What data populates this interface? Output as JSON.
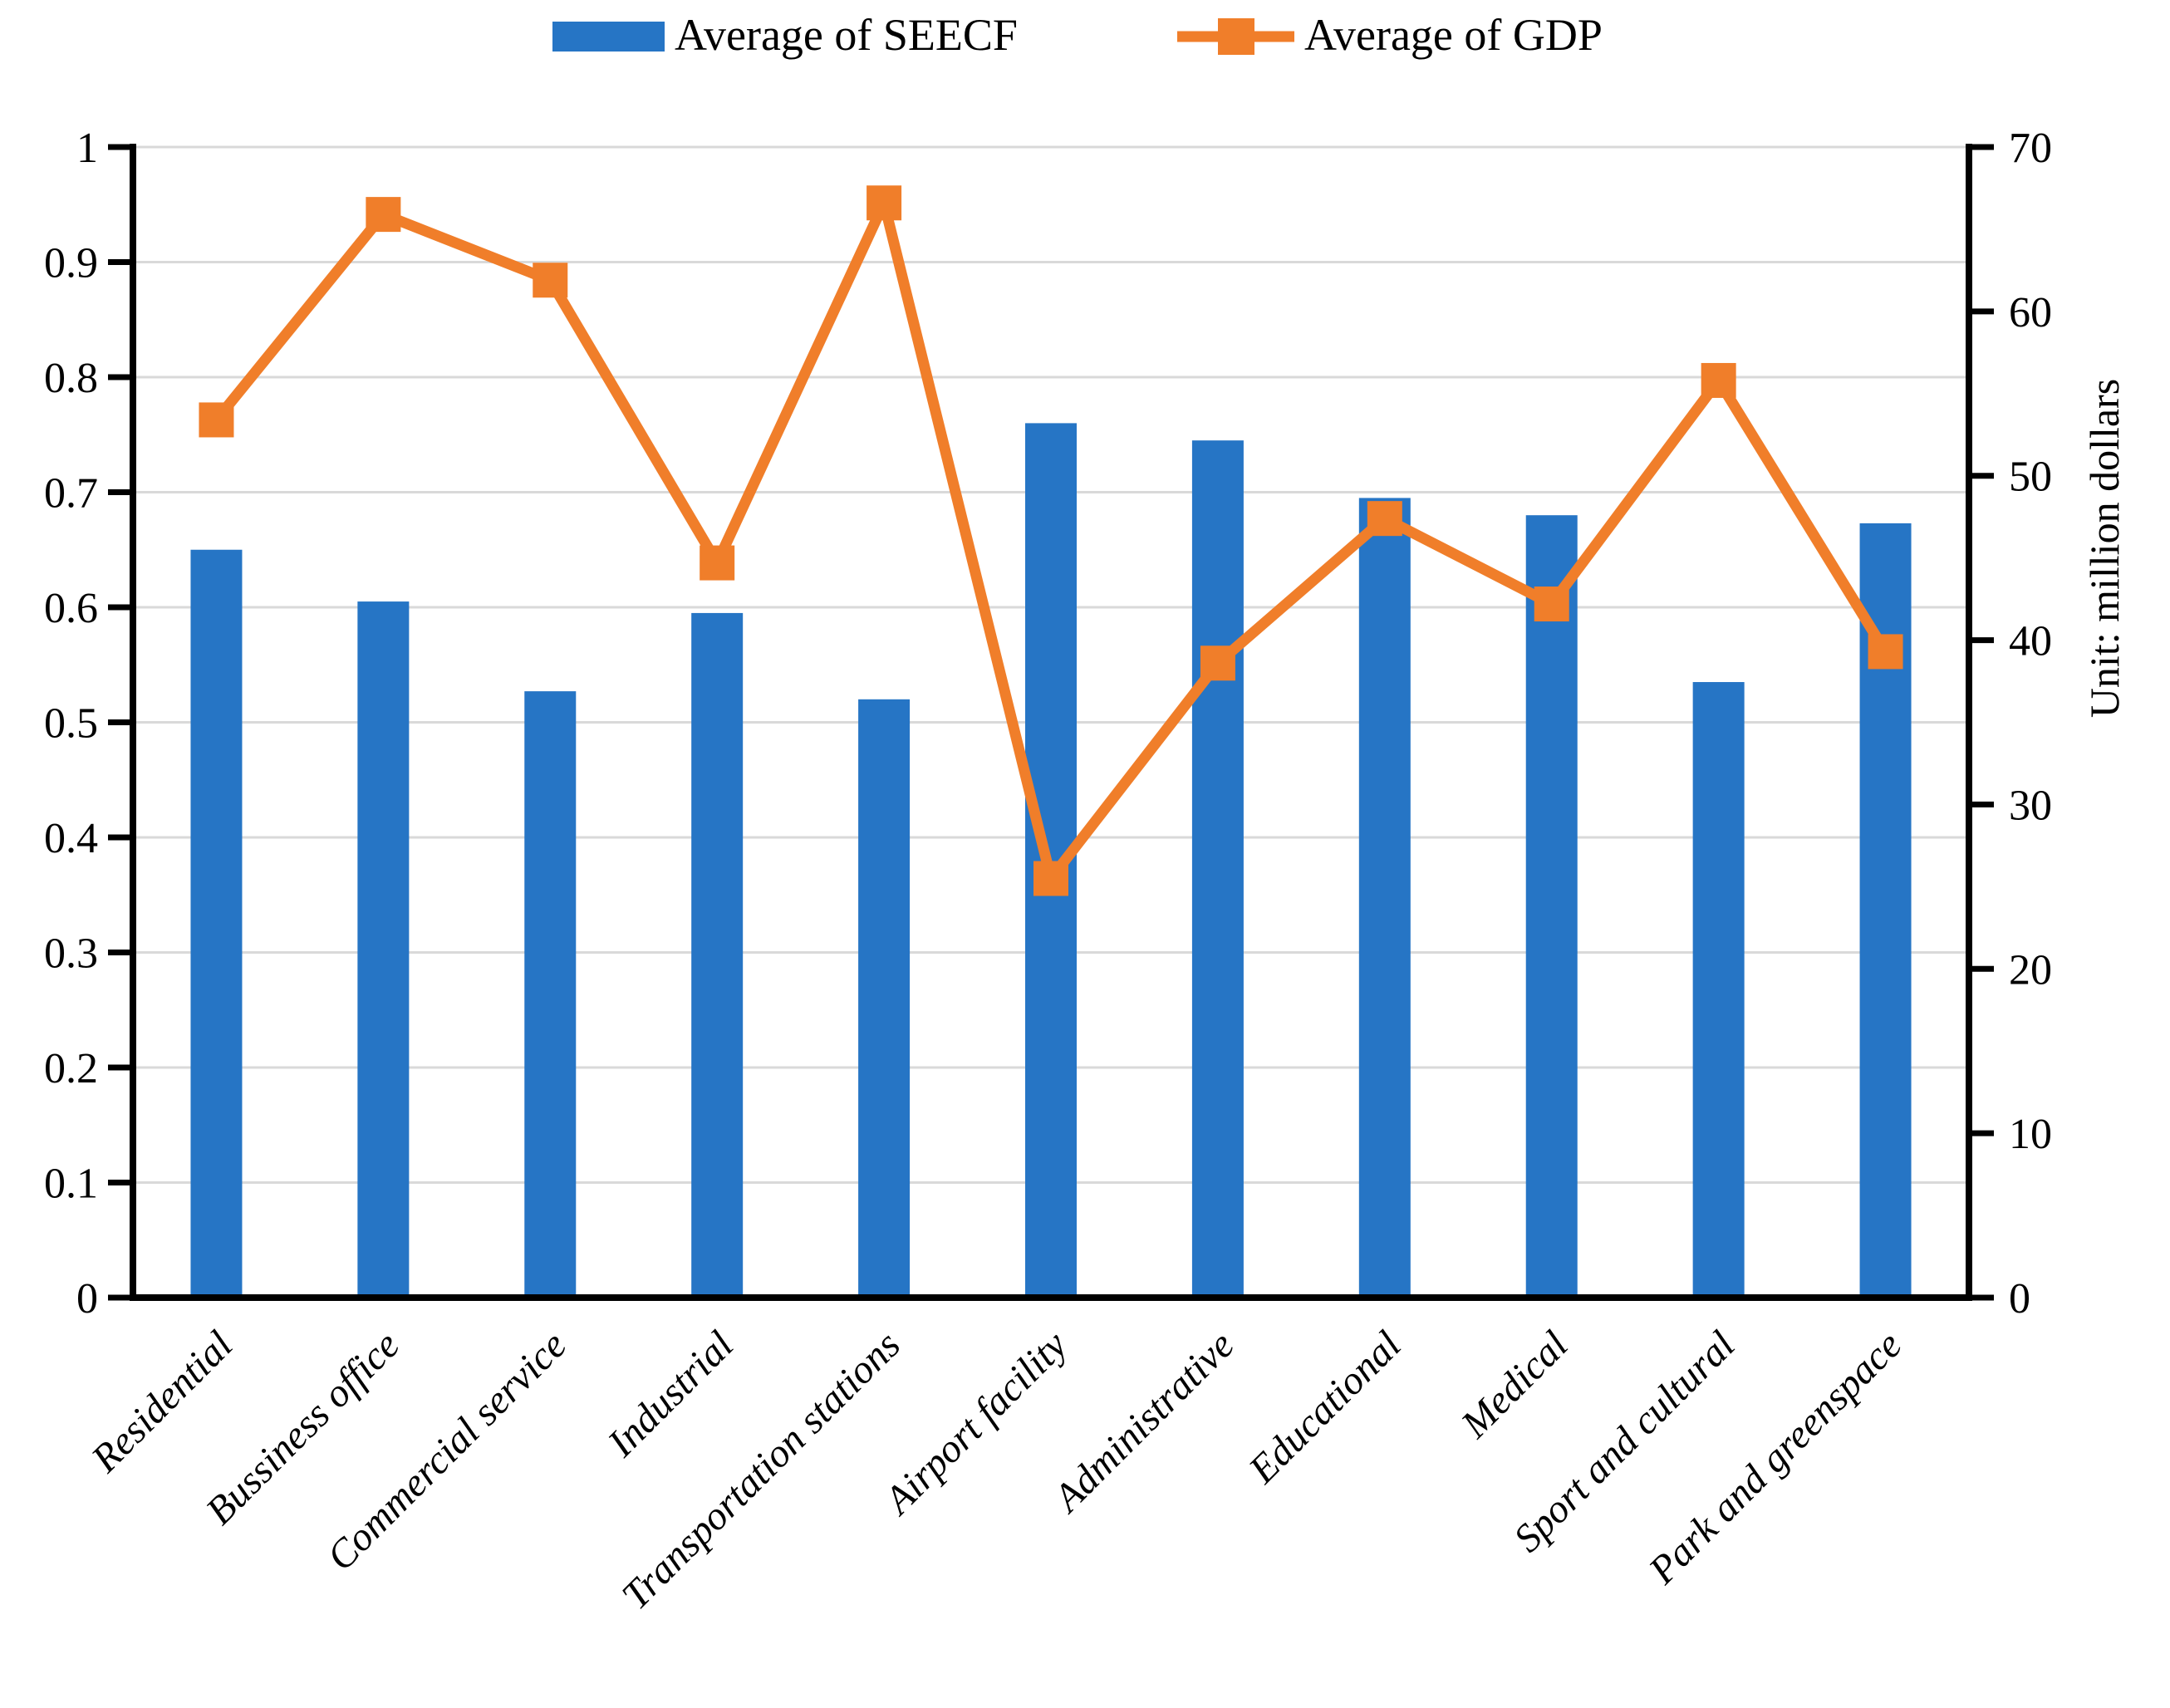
{
  "chart_data": {
    "type": "bar+line combo",
    "categories": [
      "Residential",
      "Bussiness office",
      "Commercial service",
      "Industrial",
      "Transportation stations",
      "Airport facility",
      "Administrative",
      "Educational",
      "Medical",
      "Sport and cultural",
      "Park and greenspace"
    ],
    "series": [
      {
        "name": "Average of SEECF",
        "type": "bar",
        "axis": "left",
        "values": [
          0.65,
          0.605,
          0.527,
          0.595,
          0.52,
          0.76,
          0.745,
          0.695,
          0.68,
          0.535,
          0.673
        ]
      },
      {
        "name": "Average of GDP",
        "type": "line",
        "axis": "right",
        "marker": "square",
        "values": [
          53.4,
          65.9,
          61.9,
          44.7,
          66.6,
          25.5,
          38.6,
          47.4,
          42.2,
          55.8,
          39.3
        ]
      }
    ],
    "left_axis": {
      "min": 0,
      "max": 1,
      "step": 0.1,
      "tick_labels": [
        "0",
        "0.1",
        "0.2",
        "0.3",
        "0.4",
        "0.5",
        "0.6",
        "0.7",
        "0.8",
        "0.9",
        "1"
      ]
    },
    "right_axis": {
      "min": 0,
      "max": 70,
      "step": 10,
      "tick_labels": [
        "0",
        "10",
        "20",
        "30",
        "40",
        "50",
        "60",
        "70"
      ],
      "title": "Unit: million dollars"
    },
    "grid": true,
    "legend_position": "top"
  },
  "legend": {
    "seecf_label": "Average of SEECF",
    "gdp_label": "Average of GDP"
  },
  "unit_label": "Unit: million dollars",
  "colors": {
    "bar": "#2675C5",
    "line": "#F07E2A",
    "grid": "#D9D9D9",
    "axis": "#000000",
    "background": "#FFFFFF"
  }
}
